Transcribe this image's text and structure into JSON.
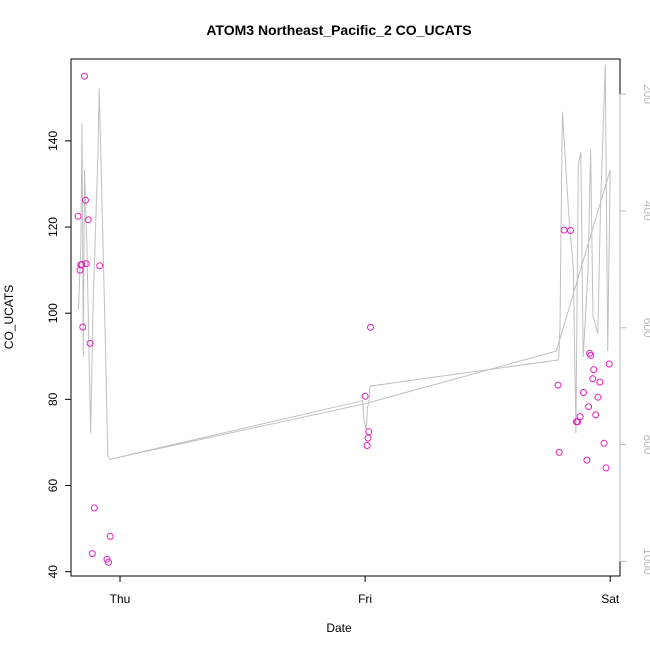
{
  "chart_data": {
    "type": "scatter",
    "title": "ATOM3 Northeast_Pacific_2 CO_UCATS",
    "xlabel": "Date",
    "ylabel": "CO_UCATS",
    "x_ticks": [
      "Thu",
      "Fri",
      "Sat"
    ],
    "xlim": [
      -0.2,
      2.04
    ],
    "ylim": [
      39,
      159
    ],
    "y_ticks": [
      40,
      60,
      80,
      100,
      120,
      140
    ],
    "y2_ticks": [
      200,
      400,
      600,
      800,
      1000
    ],
    "y2lim": [
      1025,
      140
    ],
    "y2_reversed": true,
    "grid": false,
    "colors": {
      "points": "#e21fbf",
      "pressure_line": "#c0c0c0",
      "right_axis": "#bdbdbd"
    },
    "series": [
      {
        "values": [
          [
            -0.171,
            122.5
          ],
          [
            -0.163,
            110.0
          ],
          [
            -0.16,
            111.2
          ],
          [
            -0.156,
            111.3
          ],
          [
            -0.152,
            96.8
          ],
          [
            -0.145,
            155.0
          ],
          [
            -0.141,
            126.2
          ],
          [
            -0.138,
            111.5
          ],
          [
            -0.13,
            121.7
          ],
          [
            -0.122,
            93.0
          ],
          [
            -0.113,
            44.2
          ],
          [
            -0.105,
            54.8
          ],
          [
            -0.083,
            111.0
          ],
          [
            -0.053,
            42.9
          ],
          [
            -0.047,
            42.2
          ],
          [
            -0.04,
            48.2
          ],
          [
            1.0,
            80.7
          ],
          [
            1.008,
            69.3
          ],
          [
            1.012,
            71.0
          ],
          [
            1.015,
            72.5
          ],
          [
            1.022,
            96.7
          ],
          [
            1.787,
            83.3
          ],
          [
            1.792,
            67.7
          ],
          [
            1.812,
            119.3
          ],
          [
            1.838,
            119.2
          ],
          [
            1.862,
            74.8
          ],
          [
            1.867,
            74.8
          ],
          [
            1.877,
            76.0
          ],
          [
            1.891,
            81.6
          ],
          [
            1.905,
            65.9
          ],
          [
            1.912,
            78.3
          ],
          [
            1.916,
            90.7
          ],
          [
            1.921,
            90.2
          ],
          [
            1.929,
            84.8
          ],
          [
            1.933,
            86.9
          ],
          [
            1.941,
            76.4
          ],
          [
            1.95,
            80.5
          ],
          [
            1.958,
            84.0
          ],
          [
            1.975,
            69.8
          ],
          [
            1.983,
            64.1
          ],
          [
            1.996,
            88.2
          ]
        ]
      },
      {
        "axis": "right",
        "values": [
          [
            -0.17,
            570
          ],
          [
            -0.16,
            460
          ],
          [
            -0.155,
            250
          ],
          [
            -0.15,
            650
          ],
          [
            -0.145,
            330
          ],
          [
            -0.135,
            460
          ],
          [
            -0.12,
            780
          ],
          [
            -0.11,
            560
          ],
          [
            -0.09,
            300
          ],
          [
            -0.085,
            190
          ],
          [
            -0.06,
            620
          ],
          [
            -0.05,
            820
          ],
          [
            -0.04,
            825
          ],
          [
            0.99,
            725
          ],
          [
            0.995,
            757
          ],
          [
            1.005,
            775
          ],
          [
            1.01,
            735
          ],
          [
            1.015,
            730
          ],
          [
            1.02,
            700
          ],
          [
            1.79,
            655
          ],
          [
            1.795,
            600
          ],
          [
            1.8,
            400
          ],
          [
            1.805,
            230
          ],
          [
            1.83,
            400
          ],
          [
            1.85,
            500
          ],
          [
            1.86,
            780
          ],
          [
            1.87,
            320
          ],
          [
            1.88,
            300
          ],
          [
            1.89,
            650
          ],
          [
            1.91,
            500
          ],
          [
            1.92,
            295
          ],
          [
            1.93,
            580
          ],
          [
            1.95,
            610
          ],
          [
            1.96,
            400
          ],
          [
            1.98,
            150
          ],
          [
            1.99,
            640
          ],
          [
            2.0,
            330
          ],
          [
            1.78,
            640
          ],
          [
            1.0,
            730
          ],
          [
            -0.04,
            825
          ]
        ]
      }
    ]
  }
}
